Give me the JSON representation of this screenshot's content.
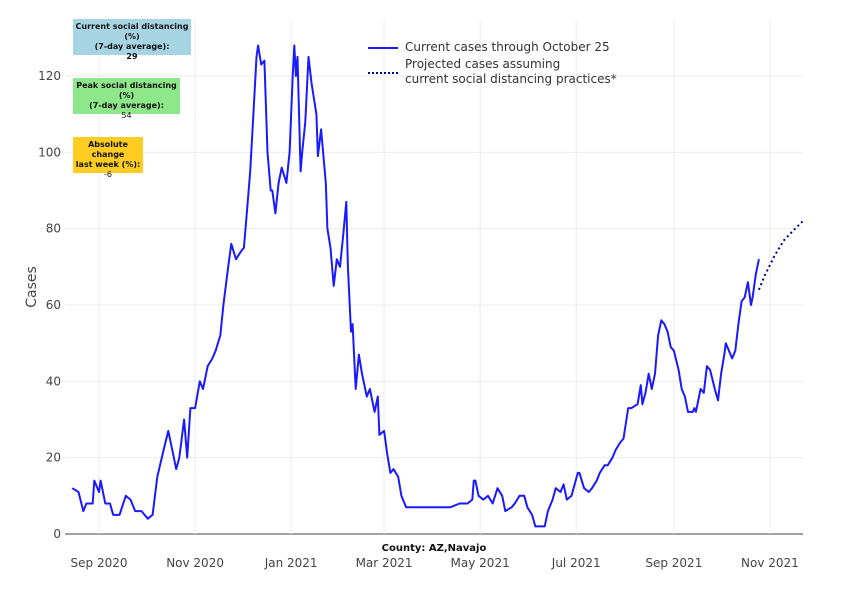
{
  "chart_data": {
    "type": "line",
    "xlabel": "County: AZ,Navajo",
    "ylabel": "Cases",
    "x_units": "days since 2020-09-01",
    "xlim": [
      -21.6,
      447
    ],
    "ylim": [
      0,
      130
    ],
    "grid": true,
    "x_ticks": [
      {
        "day": 0,
        "label": "Sep 2020"
      },
      {
        "day": 61,
        "label": "Nov 2020"
      },
      {
        "day": 122,
        "label": "Jan 2021"
      },
      {
        "day": 181,
        "label": "Mar 2021"
      },
      {
        "day": 242,
        "label": "May 2021"
      },
      {
        "day": 303,
        "label": "Jul 2021"
      },
      {
        "day": 365,
        "label": "Sep 2021"
      },
      {
        "day": 426,
        "label": "Nov 2021"
      }
    ],
    "y_ticks": [
      0,
      20,
      40,
      60,
      80,
      100,
      120
    ],
    "legend_position": "top-center",
    "series": [
      {
        "name": "Current cases through October 25",
        "color": "#1a1aff",
        "style": "solid",
        "points": [
          [
            -17,
            12
          ],
          [
            -13,
            11
          ],
          [
            -10,
            6
          ],
          [
            -8,
            8
          ],
          [
            -4,
            8
          ],
          [
            -3,
            14
          ],
          [
            0,
            11
          ],
          [
            1,
            14
          ],
          [
            4,
            8
          ],
          [
            7,
            8
          ],
          [
            9,
            5
          ],
          [
            13,
            5
          ],
          [
            17,
            10
          ],
          [
            20,
            9
          ],
          [
            23,
            6
          ],
          [
            27,
            6
          ],
          [
            31,
            4
          ],
          [
            34,
            5
          ],
          [
            37,
            15
          ],
          [
            41,
            22
          ],
          [
            44,
            27
          ],
          [
            46,
            23
          ],
          [
            49,
            17
          ],
          [
            51,
            20
          ],
          [
            54,
            30
          ],
          [
            56,
            20
          ],
          [
            58,
            33
          ],
          [
            61,
            33
          ],
          [
            64,
            40
          ],
          [
            66,
            38
          ],
          [
            69,
            44
          ],
          [
            72,
            46
          ],
          [
            74,
            48
          ],
          [
            77,
            52
          ],
          [
            79,
            60
          ],
          [
            82,
            70
          ],
          [
            84,
            76
          ],
          [
            87,
            72
          ],
          [
            90,
            74
          ],
          [
            92,
            75
          ],
          [
            94,
            85
          ],
          [
            96,
            95
          ],
          [
            98,
            110
          ],
          [
            100,
            125
          ],
          [
            101,
            128
          ],
          [
            103,
            123
          ],
          [
            105,
            124
          ],
          [
            107,
            100
          ],
          [
            109,
            90
          ],
          [
            110,
            90
          ],
          [
            112,
            84
          ],
          [
            114,
            92
          ],
          [
            116,
            96
          ],
          [
            119,
            92
          ],
          [
            121,
            100
          ],
          [
            123,
            120
          ],
          [
            124,
            128
          ],
          [
            125,
            120
          ],
          [
            126,
            125
          ],
          [
            128,
            95
          ],
          [
            129,
            100
          ],
          [
            131,
            108
          ],
          [
            133,
            125
          ],
          [
            135,
            118
          ],
          [
            138,
            110
          ],
          [
            139,
            99
          ],
          [
            141,
            106
          ],
          [
            144,
            92
          ],
          [
            145,
            80
          ],
          [
            147,
            75
          ],
          [
            149,
            65
          ],
          [
            151,
            72
          ],
          [
            153,
            70
          ],
          [
            155,
            78
          ],
          [
            157,
            87
          ],
          [
            158,
            70
          ],
          [
            160,
            53
          ],
          [
            161,
            55
          ],
          [
            163,
            38
          ],
          [
            165,
            47
          ],
          [
            167,
            42
          ],
          [
            170,
            36
          ],
          [
            172,
            38
          ],
          [
            175,
            32
          ],
          [
            177,
            36
          ],
          [
            178,
            26
          ],
          [
            181,
            27
          ],
          [
            183,
            21
          ],
          [
            185,
            16
          ],
          [
            187,
            17
          ],
          [
            190,
            15
          ],
          [
            192,
            10
          ],
          [
            195,
            7
          ],
          [
            204,
            7
          ],
          [
            217,
            7
          ],
          [
            223,
            7
          ],
          [
            229,
            8
          ],
          [
            234,
            8
          ],
          [
            237,
            9
          ],
          [
            238,
            14
          ],
          [
            239,
            14
          ],
          [
            241,
            10
          ],
          [
            244,
            9
          ],
          [
            247,
            10
          ],
          [
            250,
            8
          ],
          [
            253,
            12
          ],
          [
            256,
            10
          ],
          [
            258,
            6
          ],
          [
            262,
            7
          ],
          [
            264,
            8
          ],
          [
            267,
            10
          ],
          [
            270,
            10
          ],
          [
            272,
            7
          ],
          [
            275,
            5
          ],
          [
            277,
            2
          ],
          [
            283,
            2
          ],
          [
            285,
            6
          ],
          [
            288,
            9
          ],
          [
            290,
            12
          ],
          [
            293,
            11
          ],
          [
            295,
            13
          ],
          [
            297,
            9
          ],
          [
            300,
            10
          ],
          [
            304,
            16
          ],
          [
            305,
            16
          ],
          [
            308,
            12
          ],
          [
            311,
            11
          ],
          [
            313,
            12
          ],
          [
            316,
            14
          ],
          [
            318,
            16
          ],
          [
            321,
            18
          ],
          [
            323,
            18
          ],
          [
            326,
            20
          ],
          [
            328,
            22
          ],
          [
            331,
            24
          ],
          [
            333,
            25
          ],
          [
            336,
            33
          ],
          [
            338,
            33
          ],
          [
            342,
            34
          ],
          [
            344,
            39
          ],
          [
            345,
            34
          ],
          [
            347,
            37
          ],
          [
            349,
            42
          ],
          [
            351,
            38
          ],
          [
            353,
            42
          ],
          [
            355,
            52
          ],
          [
            357,
            56
          ],
          [
            359,
            55
          ],
          [
            361,
            53
          ],
          [
            363,
            49
          ],
          [
            365,
            48
          ],
          [
            368,
            43
          ],
          [
            370,
            38
          ],
          [
            372,
            36
          ],
          [
            374,
            32
          ],
          [
            377,
            32
          ],
          [
            378,
            33
          ],
          [
            379,
            32
          ],
          [
            382,
            38
          ],
          [
            384,
            37
          ],
          [
            386,
            44
          ],
          [
            388,
            43
          ],
          [
            391,
            38
          ],
          [
            393,
            35
          ],
          [
            395,
            42
          ],
          [
            397,
            47
          ],
          [
            398,
            50
          ],
          [
            400,
            48
          ],
          [
            402,
            46
          ],
          [
            404,
            48
          ],
          [
            406,
            55
          ],
          [
            408,
            61
          ],
          [
            410,
            62
          ],
          [
            412,
            66
          ],
          [
            414,
            60
          ],
          [
            415,
            62
          ],
          [
            417,
            68
          ],
          [
            419,
            72
          ]
        ]
      },
      {
        "name": "Projected cases assuming current social distancing practices*",
        "color": "#00008b",
        "style": "dotted",
        "points": [
          [
            419,
            64
          ],
          [
            423,
            68
          ],
          [
            429,
            73
          ],
          [
            435,
            77
          ],
          [
            442,
            80
          ],
          [
            447,
            82
          ]
        ]
      }
    ],
    "legend": {
      "line1": "Current cases through October 25",
      "line2a": "Projected cases assuming",
      "line2b": "current social distancing practices*"
    }
  },
  "annotations": {
    "current": {
      "l1": "Current social distancing (%)",
      "l2": "(7-day average):",
      "value": "29",
      "color": "#a6d4e3"
    },
    "peak": {
      "l1": "Peak social distancing (%)",
      "l2": "(7-day average):",
      "value": "54",
      "color": "#8ee88a"
    },
    "change": {
      "l1": "Absolute change",
      "l2": "last week (%):",
      "value": "-6",
      "color": "#ffcc22"
    }
  }
}
